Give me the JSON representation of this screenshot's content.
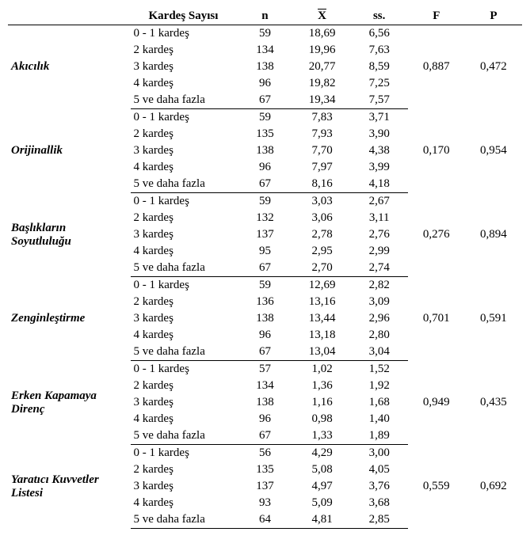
{
  "headers": {
    "rowlabel": "",
    "category": "Kardeş Sayısı",
    "n": "n",
    "mean": "X",
    "sd": "ss.",
    "F": "F",
    "P": "P"
  },
  "categories": [
    "0 - 1 kardeş",
    "2 kardeş",
    "3 kardeş",
    "4 kardeş",
    "5 ve daha fazla"
  ],
  "groups": [
    {
      "label": "Akıcılık",
      "rows": [
        {
          "n": "59",
          "mean": "18,69",
          "sd": "6,56"
        },
        {
          "n": "134",
          "mean": "19,96",
          "sd": "7,63"
        },
        {
          "n": "138",
          "mean": "20,77",
          "sd": "8,59"
        },
        {
          "n": "96",
          "mean": "19,82",
          "sd": "7,25"
        },
        {
          "n": "67",
          "mean": "19,34",
          "sd": "7,57"
        }
      ],
      "F": "0,887",
      "P": "0,472"
    },
    {
      "label": "Orijinallik",
      "rows": [
        {
          "n": "59",
          "mean": "7,83",
          "sd": "3,71"
        },
        {
          "n": "135",
          "mean": "7,93",
          "sd": "3,90"
        },
        {
          "n": "138",
          "mean": "7,70",
          "sd": "4,38"
        },
        {
          "n": "96",
          "mean": "7,97",
          "sd": "3,99"
        },
        {
          "n": "67",
          "mean": "8,16",
          "sd": "4,18"
        }
      ],
      "F": "0,170",
      "P": "0,954"
    },
    {
      "label": "Başlıkların Soyutluluğu",
      "rows": [
        {
          "n": "59",
          "mean": "3,03",
          "sd": "2,67"
        },
        {
          "n": "132",
          "mean": "3,06",
          "sd": "3,11"
        },
        {
          "n": "137",
          "mean": "2,78",
          "sd": "2,76"
        },
        {
          "n": "95",
          "mean": "2,95",
          "sd": "2,99"
        },
        {
          "n": "67",
          "mean": "2,70",
          "sd": "2,74"
        }
      ],
      "F": "0,276",
      "P": "0,894"
    },
    {
      "label": "Zenginleştirme",
      "rows": [
        {
          "n": "59",
          "mean": "12,69",
          "sd": "2,82"
        },
        {
          "n": "136",
          "mean": "13,16",
          "sd": "3,09"
        },
        {
          "n": "138",
          "mean": "13,44",
          "sd": "2,96"
        },
        {
          "n": "96",
          "mean": "13,18",
          "sd": "2,80"
        },
        {
          "n": "67",
          "mean": "13,04",
          "sd": "3,04"
        }
      ],
      "F": "0,701",
      "P": "0,591"
    },
    {
      "label": "Erken Kapamaya Direnç",
      "rows": [
        {
          "n": "57",
          "mean": "1,02",
          "sd": "1,52"
        },
        {
          "n": "134",
          "mean": "1,36",
          "sd": "1,92"
        },
        {
          "n": "138",
          "mean": "1,16",
          "sd": "1,68"
        },
        {
          "n": "96",
          "mean": "0,98",
          "sd": "1,40"
        },
        {
          "n": "67",
          "mean": "1,33",
          "sd": "1,89"
        }
      ],
      "F": "0,949",
      "P": "0,435"
    },
    {
      "label": "Yaratıcı Kuvvetler Listesi",
      "rows": [
        {
          "n": "56",
          "mean": "4,29",
          "sd": "3,00"
        },
        {
          "n": "135",
          "mean": "5,08",
          "sd": "4,05"
        },
        {
          "n": "137",
          "mean": "4,97",
          "sd": "3,76"
        },
        {
          "n": "93",
          "mean": "5,09",
          "sd": "3,68"
        },
        {
          "n": "64",
          "mean": "4,81",
          "sd": "2,85"
        }
      ],
      "F": "0,559",
      "P": "0,692"
    }
  ]
}
